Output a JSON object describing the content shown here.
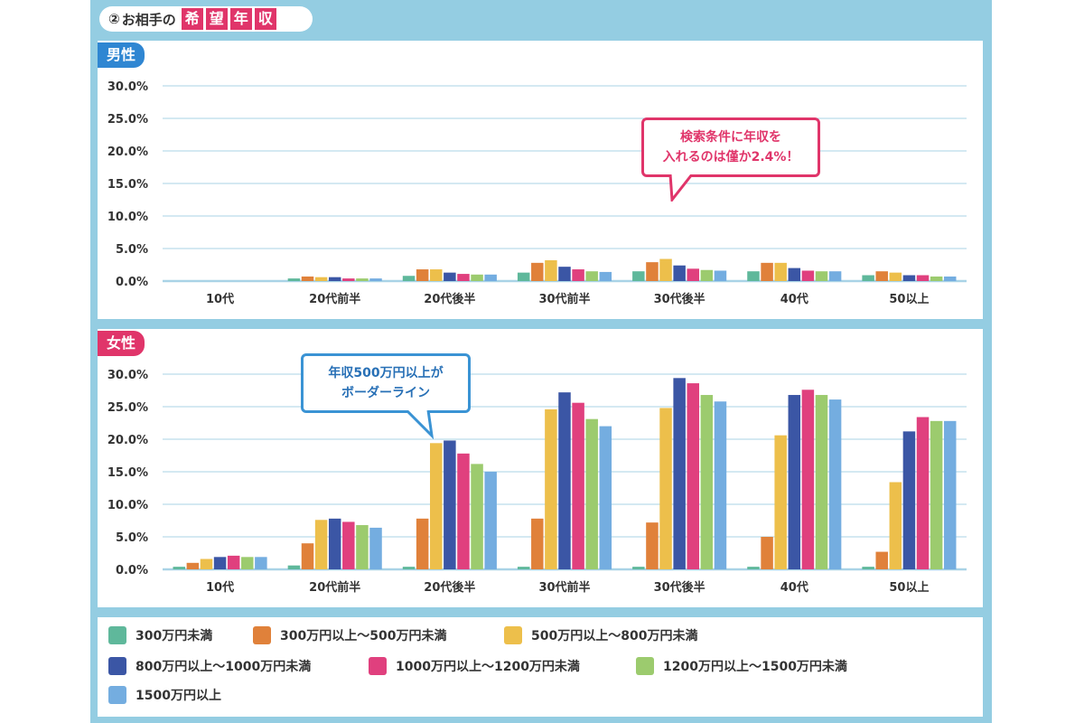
{
  "title": {
    "number": "②",
    "prefix": "お相手の",
    "boxes": [
      "希",
      "望",
      "年",
      "収"
    ]
  },
  "colors": {
    "frame": "#94cde2",
    "male_tag": "#2f86d2",
    "female_tag": "#e0356a",
    "series": [
      "#5fb89b",
      "#e0813a",
      "#edbf4b",
      "#3b56a5",
      "#e0407e",
      "#9ccb6e",
      "#74ade0"
    ]
  },
  "legend": [
    "300万円未満",
    "300万円以上～500万円未満",
    "500万円以上～800万円未満",
    "800万円以上～1000万円未満",
    "1000万円以上～1200万円未満",
    "1200万円以上～1500万円未満",
    "1500万円以上"
  ],
  "male": {
    "label": "男性",
    "callout": {
      "line1": "検索条件に年収を",
      "line2": "入れるのは僅か2.4%！"
    }
  },
  "female": {
    "label": "女性",
    "callout": {
      "line1": "年収500万円以上が",
      "line2": "ボーダーライン"
    }
  },
  "chart_data": [
    {
      "type": "bar",
      "title": "男性",
      "categories": [
        "10代",
        "20代前半",
        "20代後半",
        "30代前半",
        "30代後半",
        "40代",
        "50以上"
      ],
      "yticks": [
        "0.0%",
        "5.0%",
        "10.0%",
        "15.0%",
        "20.0%",
        "25.0%",
        "30.0%"
      ],
      "ylim": [
        0,
        30
      ],
      "series": [
        {
          "name": "300万円未満",
          "values": [
            0,
            0.4,
            0.8,
            1.3,
            1.5,
            1.5,
            0.9
          ]
        },
        {
          "name": "300万円以上～500万円未満",
          "values": [
            0,
            0.7,
            1.8,
            2.8,
            2.9,
            2.8,
            1.5
          ]
        },
        {
          "name": "500万円以上～800万円未満",
          "values": [
            0,
            0.6,
            1.8,
            3.2,
            3.4,
            2.8,
            1.3
          ]
        },
        {
          "name": "800万円以上～1000万円未満",
          "values": [
            0,
            0.6,
            1.3,
            2.2,
            2.4,
            2.0,
            0.9
          ]
        },
        {
          "name": "1000万円以上～1200万円未満",
          "values": [
            0,
            0.4,
            1.1,
            1.8,
            1.9,
            1.6,
            0.9
          ]
        },
        {
          "name": "1200万円以上～1500万円未満",
          "values": [
            0,
            0.4,
            1.0,
            1.5,
            1.7,
            1.5,
            0.7
          ]
        },
        {
          "name": "1500万円以上",
          "values": [
            0,
            0.4,
            1.0,
            1.4,
            1.6,
            1.5,
            0.7
          ]
        }
      ]
    },
    {
      "type": "bar",
      "title": "女性",
      "categories": [
        "10代",
        "20代前半",
        "20代後半",
        "30代前半",
        "30代後半",
        "40代",
        "50以上"
      ],
      "yticks": [
        "0.0%",
        "5.0%",
        "10.0%",
        "15.0%",
        "20.0%",
        "25.0%",
        "30.0%"
      ],
      "ylim": [
        0,
        30
      ],
      "series": [
        {
          "name": "300万円未満",
          "values": [
            0.4,
            0.6,
            0.4,
            0.4,
            0.4,
            0.4,
            0.4
          ]
        },
        {
          "name": "300万円以上～500万円未満",
          "values": [
            1.0,
            4.0,
            7.8,
            7.8,
            7.2,
            5.0,
            2.7
          ]
        },
        {
          "name": "500万円以上～800万円未満",
          "values": [
            1.6,
            7.6,
            19.4,
            24.6,
            24.8,
            20.6,
            13.4
          ]
        },
        {
          "name": "800万円以上～1000万円未満",
          "values": [
            1.9,
            7.8,
            19.8,
            27.2,
            29.4,
            26.8,
            21.2
          ]
        },
        {
          "name": "1000万円以上～1200万円未満",
          "values": [
            2.1,
            7.3,
            17.8,
            25.6,
            28.6,
            27.6,
            23.4
          ]
        },
        {
          "name": "1200万円以上～1500万円未満",
          "values": [
            1.9,
            6.8,
            16.2,
            23.1,
            26.8,
            26.8,
            22.8
          ]
        },
        {
          "name": "1500万円以上",
          "values": [
            1.9,
            6.4,
            15.0,
            22.0,
            25.8,
            26.1,
            22.8
          ]
        }
      ]
    }
  ]
}
